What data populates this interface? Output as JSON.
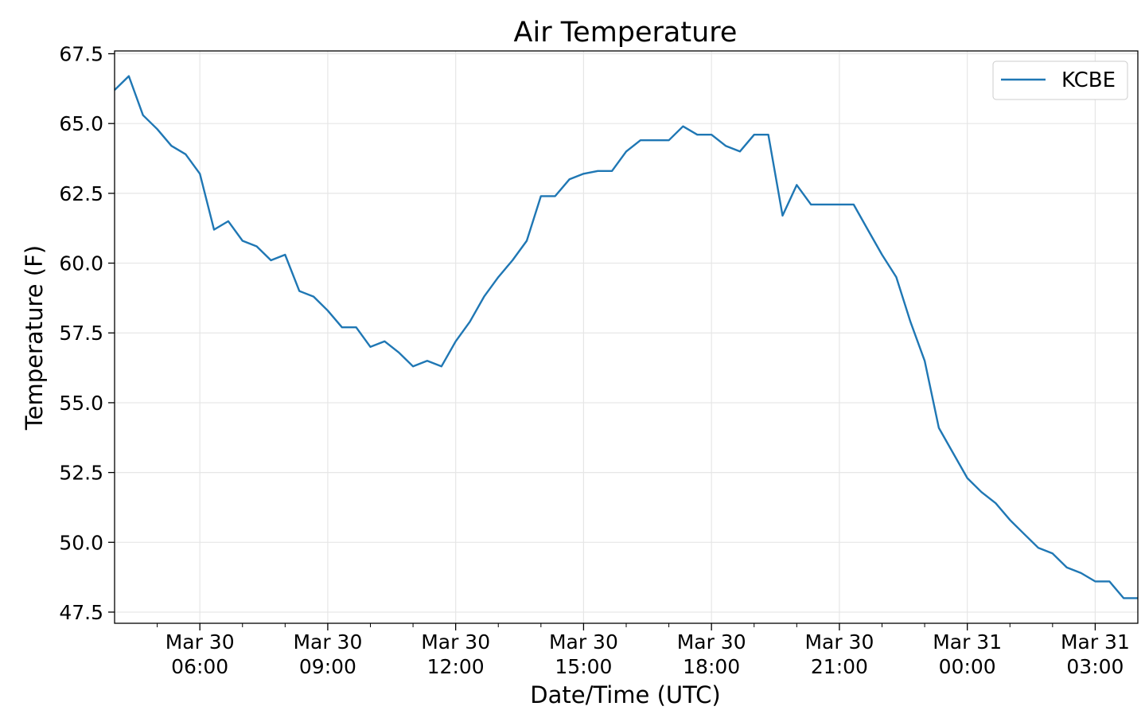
{
  "chart_data": {
    "type": "line",
    "title": "Air Temperature",
    "xlabel": "Date/Time (UTC)",
    "ylabel": "Temperature (F)",
    "ylim": [
      47.1,
      67.6
    ],
    "xlim": [
      "Mar 30 04:00",
      "Mar 31 04:00"
    ],
    "x_ticks": [
      {
        "line1": "Mar 30",
        "line2": "06:00",
        "hours": 6
      },
      {
        "line1": "Mar 30",
        "line2": "09:00",
        "hours": 9
      },
      {
        "line1": "Mar 30",
        "line2": "12:00",
        "hours": 12
      },
      {
        "line1": "Mar 30",
        "line2": "15:00",
        "hours": 15
      },
      {
        "line1": "Mar 30",
        "line2": "18:00",
        "hours": 18
      },
      {
        "line1": "Mar 30",
        "line2": "21:00",
        "hours": 21
      },
      {
        "line1": "Mar 31",
        "line2": "00:00",
        "hours": 24
      },
      {
        "line1": "Mar 31",
        "line2": "03:00",
        "hours": 27
      }
    ],
    "y_ticks": [
      "47.5",
      "50.0",
      "52.5",
      "55.0",
      "57.5",
      "60.0",
      "62.5",
      "65.0",
      "67.5"
    ],
    "grid": true,
    "legend_position": "top-right",
    "series": [
      {
        "name": "KCBE",
        "color": "#1f77b4",
        "x": [
          "Mar 30 04:00",
          "Mar 30 04:20",
          "Mar 30 04:40",
          "Mar 30 05:00",
          "Mar 30 05:20",
          "Mar 30 05:40",
          "Mar 30 06:00",
          "Mar 30 06:20",
          "Mar 30 06:40",
          "Mar 30 07:00",
          "Mar 30 07:20",
          "Mar 30 07:40",
          "Mar 30 08:00",
          "Mar 30 08:20",
          "Mar 30 08:40",
          "Mar 30 09:00",
          "Mar 30 09:20",
          "Mar 30 09:40",
          "Mar 30 10:00",
          "Mar 30 10:20",
          "Mar 30 10:40",
          "Mar 30 11:00",
          "Mar 30 11:20",
          "Mar 30 11:40",
          "Mar 30 12:00",
          "Mar 30 12:20",
          "Mar 30 12:40",
          "Mar 30 13:00",
          "Mar 30 13:20",
          "Mar 30 13:40",
          "Mar 30 14:00",
          "Mar 30 14:20",
          "Mar 30 14:40",
          "Mar 30 15:00",
          "Mar 30 15:20",
          "Mar 30 15:40",
          "Mar 30 16:00",
          "Mar 30 16:20",
          "Mar 30 16:40",
          "Mar 30 17:00",
          "Mar 30 17:20",
          "Mar 30 17:40",
          "Mar 30 18:00",
          "Mar 30 18:20",
          "Mar 30 18:40",
          "Mar 30 19:00",
          "Mar 30 19:20",
          "Mar 30 19:40",
          "Mar 30 20:00",
          "Mar 30 20:20",
          "Mar 30 20:40",
          "Mar 30 21:00",
          "Mar 30 21:20",
          "Mar 30 21:40",
          "Mar 30 22:00",
          "Mar 30 22:20",
          "Mar 30 22:40",
          "Mar 30 23:00",
          "Mar 30 23:20",
          "Mar 30 23:40",
          "Mar 31 00:00",
          "Mar 31 00:20",
          "Mar 31 00:40",
          "Mar 31 01:00",
          "Mar 31 01:20",
          "Mar 31 01:40",
          "Mar 31 02:00",
          "Mar 31 02:20",
          "Mar 31 02:40",
          "Mar 31 03:00",
          "Mar 31 03:20",
          "Mar 31 03:40",
          "Mar 31 04:00"
        ],
        "y": [
          66.2,
          66.7,
          65.3,
          64.8,
          64.2,
          63.9,
          63.2,
          61.2,
          61.5,
          60.8,
          60.6,
          60.1,
          60.3,
          59.0,
          58.8,
          58.3,
          57.7,
          57.7,
          57.0,
          57.2,
          56.8,
          56.3,
          56.5,
          56.3,
          57.2,
          57.9,
          58.8,
          59.5,
          60.1,
          60.8,
          62.4,
          62.4,
          63.0,
          63.2,
          63.3,
          63.3,
          64.0,
          64.4,
          64.4,
          64.4,
          64.9,
          64.6,
          64.6,
          64.2,
          64.0,
          64.6,
          64.6,
          61.7,
          62.8,
          62.1,
          62.1,
          62.1,
          62.1,
          61.2,
          60.3,
          59.5,
          57.9,
          56.5,
          54.1,
          53.2,
          52.3,
          51.8,
          51.4,
          50.8,
          50.3,
          49.8,
          49.6,
          49.1,
          48.9,
          48.6,
          48.6,
          48.0,
          48.0
        ]
      }
    ]
  }
}
